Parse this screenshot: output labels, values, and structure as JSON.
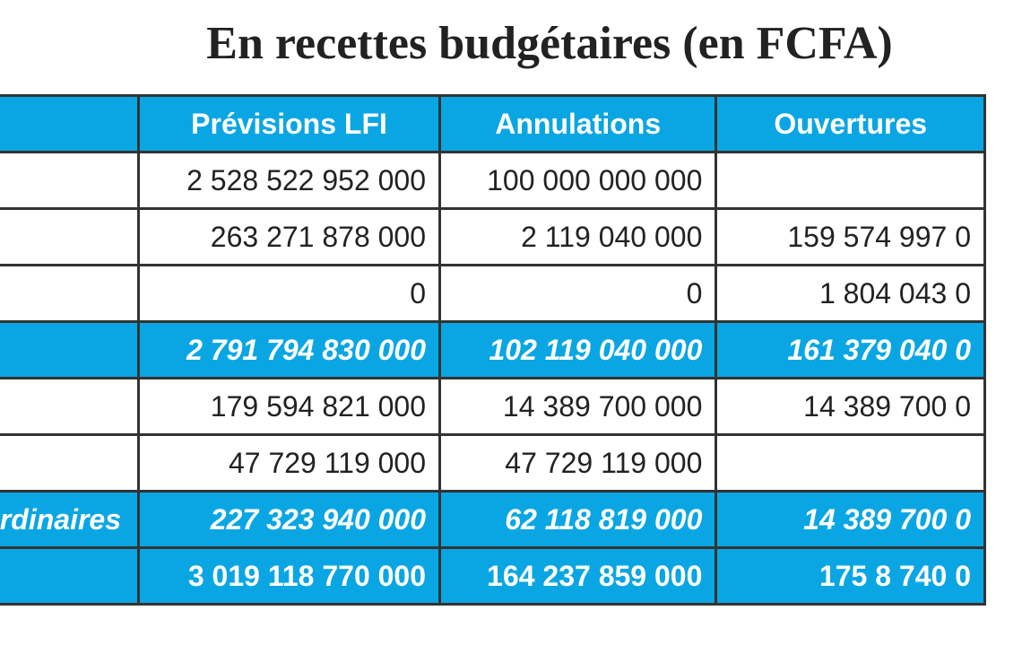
{
  "title": "En recettes budgétaires (en FCFA)",
  "columns": [
    "",
    "Prévisions LFI",
    "Annulations",
    "Ouvertures"
  ],
  "rows": [
    {
      "kind": "normal",
      "label": "",
      "values": [
        "2 528 522 952 000",
        "100 000 000 000",
        ""
      ]
    },
    {
      "kind": "normal",
      "label": "",
      "values": [
        "263 271 878 000",
        "2 119 040 000",
        "159 574 997 0"
      ]
    },
    {
      "kind": "normal",
      "label": "",
      "values": [
        "0",
        "0",
        "1 804 043 0"
      ]
    },
    {
      "kind": "sub",
      "label": "",
      "values": [
        "2 791 794 830 000",
        "102 119 040 000",
        "161 379 040 0"
      ]
    },
    {
      "kind": "normal",
      "label": "",
      "values": [
        "179 594 821 000",
        "14 389 700 000",
        "14 389 700 0"
      ]
    },
    {
      "kind": "normal",
      "label": "",
      "values": [
        "47 729 119 000",
        "47 729 119 000",
        ""
      ]
    },
    {
      "kind": "sub",
      "label": "rdinaires",
      "values": [
        "227 323 940 000",
        "62 118 819 000",
        "14 389 700 0"
      ]
    },
    {
      "kind": "total",
      "label": "",
      "values": [
        "3 019 118 770 000",
        "164 237 859 000",
        "175 8 740 0"
      ]
    }
  ],
  "colors": {
    "header_bg": "#0aa6e3",
    "header_text": "#ffffff",
    "border": "#333333",
    "text": "#222222"
  }
}
